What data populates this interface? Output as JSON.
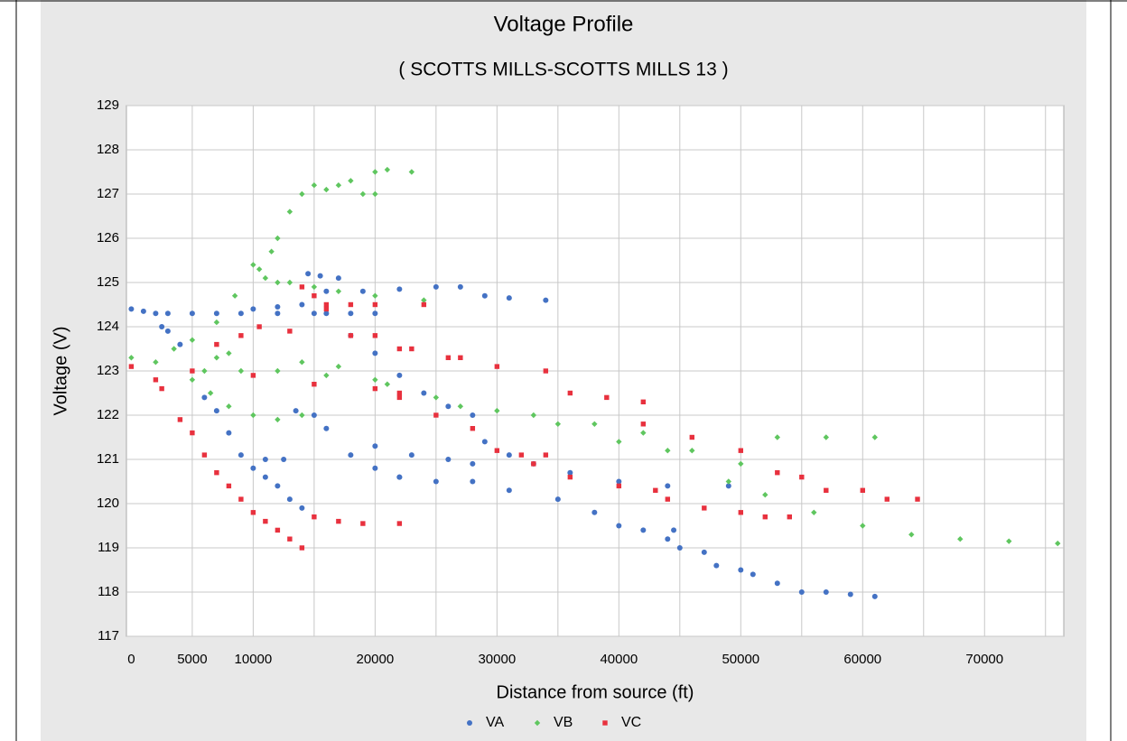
{
  "chart_data": {
    "type": "scatter",
    "title": "Voltage Profile",
    "subtitle": "( SCOTTS MILLS-SCOTTS MILLS 13 )",
    "xlabel": "Distance from source (ft)",
    "ylabel": "Voltage (V)",
    "xlim": [
      -400,
      76500
    ],
    "ylim": [
      117,
      129
    ],
    "xticks": [
      0,
      5000,
      10000,
      20000,
      30000,
      40000,
      50000,
      60000,
      70000
    ],
    "xgridlines": [
      5000,
      10000,
      15000,
      20000,
      25000,
      30000,
      35000,
      40000,
      45000,
      50000,
      55000,
      60000,
      65000,
      70000,
      75000
    ],
    "yticks": [
      117,
      118,
      119,
      120,
      121,
      122,
      123,
      124,
      125,
      126,
      127,
      128,
      129
    ],
    "grid": true,
    "legend": "bottom",
    "series": [
      {
        "name": "VA",
        "color": "#4472c4",
        "marker": "circle",
        "x": [
          0,
          1000,
          2000,
          2500,
          3000,
          4000,
          3000,
          5000,
          7000,
          9000,
          10000,
          12000,
          14000,
          14500,
          15500,
          17000,
          16000,
          19000,
          22000,
          25000,
          27000,
          29000,
          31000,
          34000,
          12000,
          15000,
          18000,
          20000,
          16000,
          18000,
          20000,
          22000,
          24000,
          26000,
          28000,
          6000,
          7000,
          8000,
          9000,
          10000,
          11000,
          12000,
          13000,
          14000,
          11000,
          12500,
          13500,
          15000,
          16000,
          18000,
          20000,
          22000,
          20000,
          23000,
          26000,
          28000,
          22000,
          25000,
          29000,
          31000,
          33000,
          36000,
          40000,
          44000,
          28000,
          31000,
          35000,
          38000,
          40000,
          42000,
          44000,
          45000,
          47000,
          48000,
          50000,
          51000,
          53000,
          55000,
          57000,
          59000,
          61000,
          44500,
          49000
        ],
        "values": [
          124.4,
          124.35,
          124.3,
          124.0,
          123.9,
          123.6,
          124.3,
          124.3,
          124.3,
          124.3,
          124.4,
          124.45,
          124.5,
          125.2,
          125.15,
          125.1,
          124.8,
          124.8,
          124.85,
          124.9,
          124.9,
          124.7,
          124.65,
          124.6,
          124.3,
          124.3,
          124.3,
          124.3,
          124.3,
          123.8,
          123.4,
          122.9,
          122.5,
          122.2,
          122.0,
          122.4,
          122.1,
          121.6,
          121.1,
          120.8,
          120.6,
          120.4,
          120.1,
          119.9,
          121.0,
          121.0,
          122.1,
          122.0,
          121.7,
          121.1,
          120.8,
          120.6,
          121.3,
          121.1,
          121.0,
          120.9,
          120.6,
          120.5,
          121.4,
          121.1,
          120.9,
          120.7,
          120.5,
          120.4,
          120.5,
          120.3,
          120.1,
          119.8,
          119.5,
          119.4,
          119.2,
          119.0,
          118.9,
          118.6,
          118.5,
          118.4,
          118.2,
          118.0,
          118.0,
          117.95,
          117.9,
          119.4,
          120.4
        ]
      },
      {
        "name": "VB",
        "color": "#5fc65f",
        "marker": "diamond",
        "x": [
          0,
          2000,
          3500,
          5000,
          7000,
          8000,
          7000,
          8500,
          10000,
          11000,
          12000,
          10500,
          11500,
          12000,
          13000,
          14000,
          15000,
          16000,
          17000,
          19000,
          20000,
          18000,
          20000,
          21000,
          23000,
          13000,
          15000,
          17000,
          20000,
          24000,
          5000,
          6500,
          8000,
          10000,
          12000,
          14000,
          6000,
          9000,
          12000,
          16000,
          20000,
          25000,
          30000,
          35000,
          40000,
          44000,
          14000,
          17000,
          21000,
          27000,
          33000,
          38000,
          42000,
          46000,
          50000,
          49000,
          52000,
          56000,
          60000,
          64000,
          68000,
          72000,
          76000,
          53000,
          57000,
          61000
        ],
        "values": [
          123.3,
          123.2,
          123.5,
          123.7,
          123.3,
          123.4,
          124.1,
          124.7,
          125.4,
          125.1,
          125.0,
          125.3,
          125.7,
          126.0,
          126.6,
          127.0,
          127.2,
          127.1,
          127.2,
          127.0,
          127.0,
          127.3,
          127.5,
          127.55,
          127.5,
          125.0,
          124.9,
          124.8,
          124.7,
          124.6,
          122.8,
          122.5,
          122.2,
          122.0,
          121.9,
          122.0,
          123.0,
          123.0,
          123.0,
          122.9,
          122.8,
          122.4,
          122.1,
          121.8,
          121.4,
          121.2,
          123.2,
          123.1,
          122.7,
          122.2,
          122.0,
          121.8,
          121.6,
          121.2,
          120.9,
          120.5,
          120.2,
          119.8,
          119.5,
          119.3,
          119.2,
          119.15,
          119.1,
          121.5,
          121.5,
          121.5
        ]
      },
      {
        "name": "VC",
        "color": "#e8313e",
        "marker": "square",
        "x": [
          0,
          5000,
          10000,
          15000,
          20000,
          22000,
          2000,
          2500,
          4000,
          5000,
          6000,
          7000,
          8000,
          9000,
          10000,
          11000,
          12000,
          13000,
          14000,
          15000,
          17000,
          19000,
          22000,
          7000,
          9000,
          10500,
          13000,
          14000,
          15000,
          16000,
          18000,
          20000,
          24000,
          16000,
          18000,
          22000,
          26000,
          30000,
          34000,
          20000,
          23000,
          27000,
          36000,
          39000,
          42000,
          22000,
          25000,
          28000,
          30000,
          33000,
          36000,
          40000,
          43000,
          32000,
          34000,
          42000,
          46000,
          50000,
          53000,
          55000,
          47000,
          50000,
          52000,
          54000,
          57000,
          60000,
          62000,
          64500,
          44000
        ],
        "values": [
          123.1,
          123.0,
          122.9,
          122.7,
          122.6,
          122.5,
          122.8,
          122.6,
          121.9,
          121.6,
          121.1,
          120.7,
          120.4,
          120.1,
          119.8,
          119.6,
          119.4,
          119.2,
          119.0,
          119.7,
          119.6,
          119.55,
          119.55,
          123.6,
          123.8,
          124.0,
          123.9,
          124.9,
          124.7,
          124.5,
          124.5,
          124.5,
          124.5,
          124.4,
          123.8,
          123.5,
          123.3,
          123.1,
          123.0,
          123.8,
          123.5,
          123.3,
          122.5,
          122.4,
          122.3,
          122.4,
          122.0,
          121.7,
          121.2,
          120.9,
          120.6,
          120.4,
          120.3,
          121.1,
          121.1,
          121.8,
          121.5,
          121.2,
          120.7,
          120.6,
          119.9,
          119.8,
          119.7,
          119.7,
          120.3,
          120.3,
          120.1,
          120.1,
          120.1
        ]
      }
    ]
  }
}
